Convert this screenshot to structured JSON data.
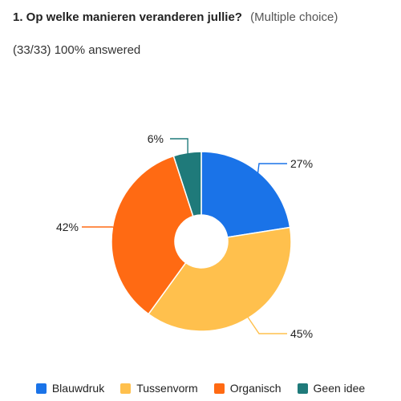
{
  "question": {
    "title": "1. Op welke manieren veranderen jullie?",
    "type": "(Multiple choice)"
  },
  "answered": "(33/33) 100% answered",
  "chart_data": {
    "type": "pie",
    "donut": true,
    "categories": [
      "Blauwdruk",
      "Tussenvorm",
      "Organisch",
      "Geen idee"
    ],
    "values": [
      27,
      45,
      42,
      6
    ],
    "labels": [
      "27%",
      "45%",
      "42%",
      "6%"
    ],
    "colors": [
      "#1a73e8",
      "#ffc04d",
      "#ff6a13",
      "#1f7a7a"
    ],
    "legend_position": "bottom"
  }
}
